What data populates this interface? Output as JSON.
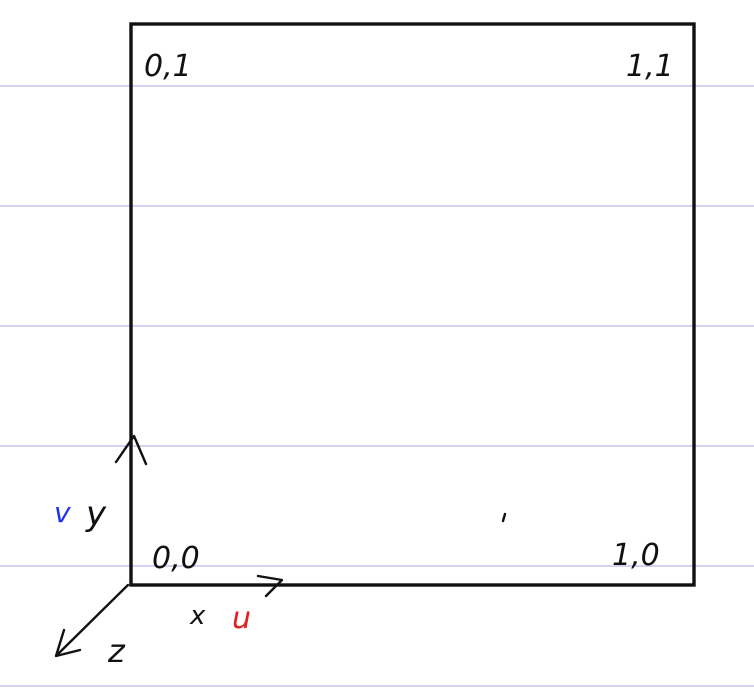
{
  "corner_labels": {
    "top_left": "0,1",
    "top_right": "1,1",
    "bottom_left": "0,0",
    "bottom_right": "1,0"
  },
  "axes": {
    "x_label": "x",
    "y_label": "y",
    "z_label": "z",
    "u_label": "u",
    "v_label": "v"
  },
  "colors": {
    "ink": "#111111",
    "v_color": "#2233ee",
    "u_color": "#e02020",
    "ruled_lines": "#a6a6e6"
  }
}
